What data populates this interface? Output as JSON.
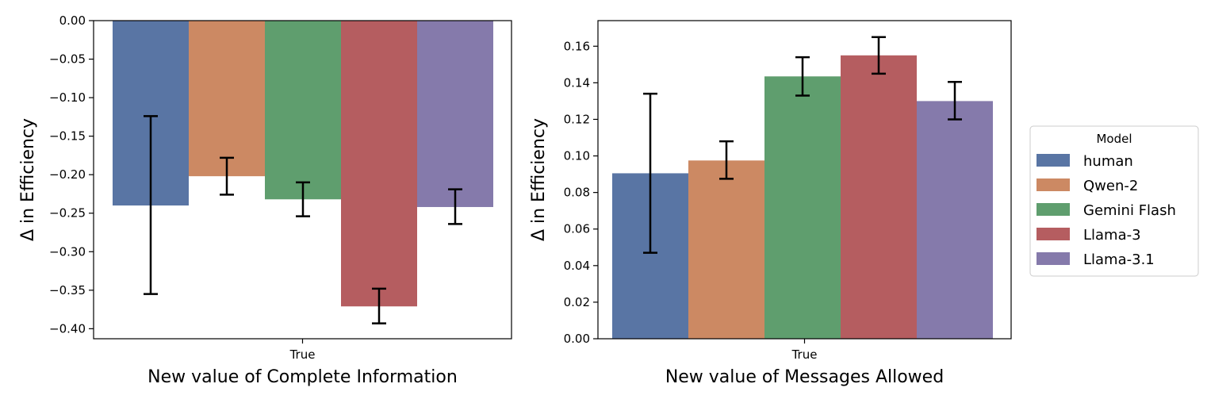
{
  "chart_data": [
    {
      "type": "bar",
      "xlabel": "New value of Complete Information",
      "ylabel": "Δ in Efficiency",
      "ylim": [
        -0.413,
        0.0
      ],
      "yticks": [
        0.0,
        -0.05,
        -0.1,
        -0.15,
        -0.2,
        -0.25,
        -0.3,
        -0.35,
        -0.4
      ],
      "ytick_labels": [
        "0.00",
        "−0.05",
        "−0.10",
        "−0.15",
        "−0.20",
        "−0.25",
        "−0.30",
        "−0.35",
        "−0.40"
      ],
      "categories": [
        "True"
      ],
      "series": [
        {
          "name": "human",
          "values": [
            -0.24
          ],
          "error_low": [
            -0.355
          ],
          "error_high": [
            -0.124
          ]
        },
        {
          "name": "Qwen-2",
          "values": [
            -0.202
          ],
          "error_low": [
            -0.226
          ],
          "error_high": [
            -0.178
          ]
        },
        {
          "name": "Gemini Flash",
          "values": [
            -0.232
          ],
          "error_low": [
            -0.254
          ],
          "error_high": [
            -0.21
          ]
        },
        {
          "name": "Llama-3",
          "values": [
            -0.371
          ],
          "error_low": [
            -0.393
          ],
          "error_high": [
            -0.348
          ]
        },
        {
          "name": "Llama-3.1",
          "values": [
            -0.242
          ],
          "error_low": [
            -0.264
          ],
          "error_high": [
            -0.219
          ]
        }
      ]
    },
    {
      "type": "bar",
      "xlabel": "New value of Messages Allowed",
      "ylabel": "Δ in Efficiency",
      "ylim": [
        0.0,
        0.174
      ],
      "yticks": [
        0.0,
        0.02,
        0.04,
        0.06,
        0.08,
        0.1,
        0.12,
        0.14,
        0.16
      ],
      "ytick_labels": [
        "0.00",
        "0.02",
        "0.04",
        "0.06",
        "0.08",
        "0.10",
        "0.12",
        "0.14",
        "0.16"
      ],
      "categories": [
        "True"
      ],
      "series": [
        {
          "name": "human",
          "values": [
            0.0905
          ],
          "error_low": [
            0.047
          ],
          "error_high": [
            0.134
          ]
        },
        {
          "name": "Qwen-2",
          "values": [
            0.0975
          ],
          "error_low": [
            0.0875
          ],
          "error_high": [
            0.108
          ]
        },
        {
          "name": "Gemini Flash",
          "values": [
            0.1435
          ],
          "error_low": [
            0.133
          ],
          "error_high": [
            0.154
          ]
        },
        {
          "name": "Llama-3",
          "values": [
            0.155
          ],
          "error_low": [
            0.145
          ],
          "error_high": [
            0.165
          ]
        },
        {
          "name": "Llama-3.1",
          "values": [
            0.13
          ],
          "error_low": [
            0.12
          ],
          "error_high": [
            0.1405
          ]
        }
      ]
    }
  ],
  "legend": {
    "title": "Model",
    "placement": "right",
    "items": [
      {
        "label": "human",
        "color": "#5975a4"
      },
      {
        "label": "Qwen-2",
        "color": "#cc8963"
      },
      {
        "label": "Gemini Flash",
        "color": "#5f9e6e"
      },
      {
        "label": "Llama-3",
        "color": "#b55d60"
      },
      {
        "label": "Llama-3.1",
        "color": "#857aab"
      }
    ]
  }
}
